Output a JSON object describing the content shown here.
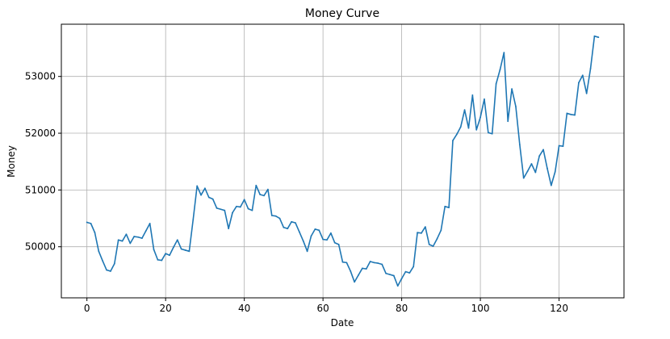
{
  "chart_data": {
    "type": "line",
    "title": "Money Curve",
    "xlabel": "Date",
    "ylabel": "Money",
    "xlim": [
      -6.5,
      136.5
    ],
    "ylim": [
      49100,
      53920
    ],
    "xticks": [
      0,
      20,
      40,
      60,
      80,
      100,
      120
    ],
    "xtick_labels": [
      "0",
      "20",
      "40",
      "60",
      "80",
      "100",
      "120"
    ],
    "yticks": [
      50000,
      51000,
      52000,
      53000
    ],
    "ytick_labels": [
      "50000",
      "51000",
      "52000",
      "53000"
    ],
    "grid": true,
    "line_color": "#1f77b4",
    "series": [
      {
        "x": [
          0,
          1,
          2,
          3,
          4,
          5,
          6,
          7,
          8,
          9,
          10,
          11,
          12,
          13,
          14,
          15,
          16,
          17,
          18,
          19,
          20,
          21,
          22,
          23,
          24,
          25,
          26,
          27,
          28,
          29,
          30,
          31,
          32,
          33,
          34,
          35,
          36,
          37,
          38,
          39,
          40,
          41,
          42,
          43,
          44,
          45,
          46,
          47,
          48,
          49,
          50,
          51,
          52,
          53,
          54,
          55,
          56,
          57,
          58,
          59,
          60,
          61,
          62,
          63,
          64,
          65,
          66,
          67,
          68,
          69,
          70,
          71,
          72,
          73,
          74,
          75,
          76,
          77,
          78,
          79,
          80,
          81,
          82,
          83,
          84,
          85,
          86,
          87,
          88,
          89,
          90,
          91,
          92,
          93,
          94,
          95,
          96,
          97,
          98,
          99,
          100,
          101,
          102,
          103,
          104,
          105,
          106,
          107,
          108,
          109,
          110,
          111,
          112,
          113,
          114,
          115,
          116,
          117,
          118,
          119,
          120,
          121,
          122,
          123,
          124,
          125,
          126,
          127,
          128,
          129,
          130
        ],
        "y": [
          50430,
          50410,
          50250,
          49920,
          49750,
          49590,
          49570,
          49700,
          50120,
          50100,
          50220,
          50060,
          50180,
          50170,
          50150,
          50280,
          50410,
          49950,
          49770,
          49760,
          49880,
          49850,
          49990,
          50120,
          49960,
          49940,
          49920,
          50480,
          51070,
          50910,
          51030,
          50870,
          50840,
          50680,
          50660,
          50640,
          50320,
          50600,
          50710,
          50700,
          50830,
          50670,
          50640,
          51080,
          50920,
          50900,
          51010,
          50550,
          50540,
          50500,
          50340,
          50320,
          50440,
          50420,
          50260,
          50100,
          49920,
          50190,
          50310,
          50290,
          50130,
          50120,
          50240,
          50070,
          50040,
          49730,
          49720,
          49570,
          49380,
          49500,
          49620,
          49610,
          49740,
          49720,
          49710,
          49690,
          49530,
          49510,
          49490,
          49310,
          49440,
          49560,
          49540,
          49650,
          50250,
          50240,
          50350,
          50040,
          50010,
          50140,
          50290,
          50710,
          50690,
          51870,
          51980,
          52110,
          52410,
          52090,
          52670,
          52060,
          52280,
          52600,
          52010,
          51990,
          52870,
          53120,
          53420,
          52210,
          52780,
          52470,
          51800,
          51210,
          51330,
          51460,
          51310,
          51600,
          51710,
          51380,
          51080,
          51320,
          51780,
          51770,
          52350,
          52330,
          52320,
          52890,
          53020,
          52700,
          53140,
          53710,
          53690
        ]
      }
    ]
  }
}
